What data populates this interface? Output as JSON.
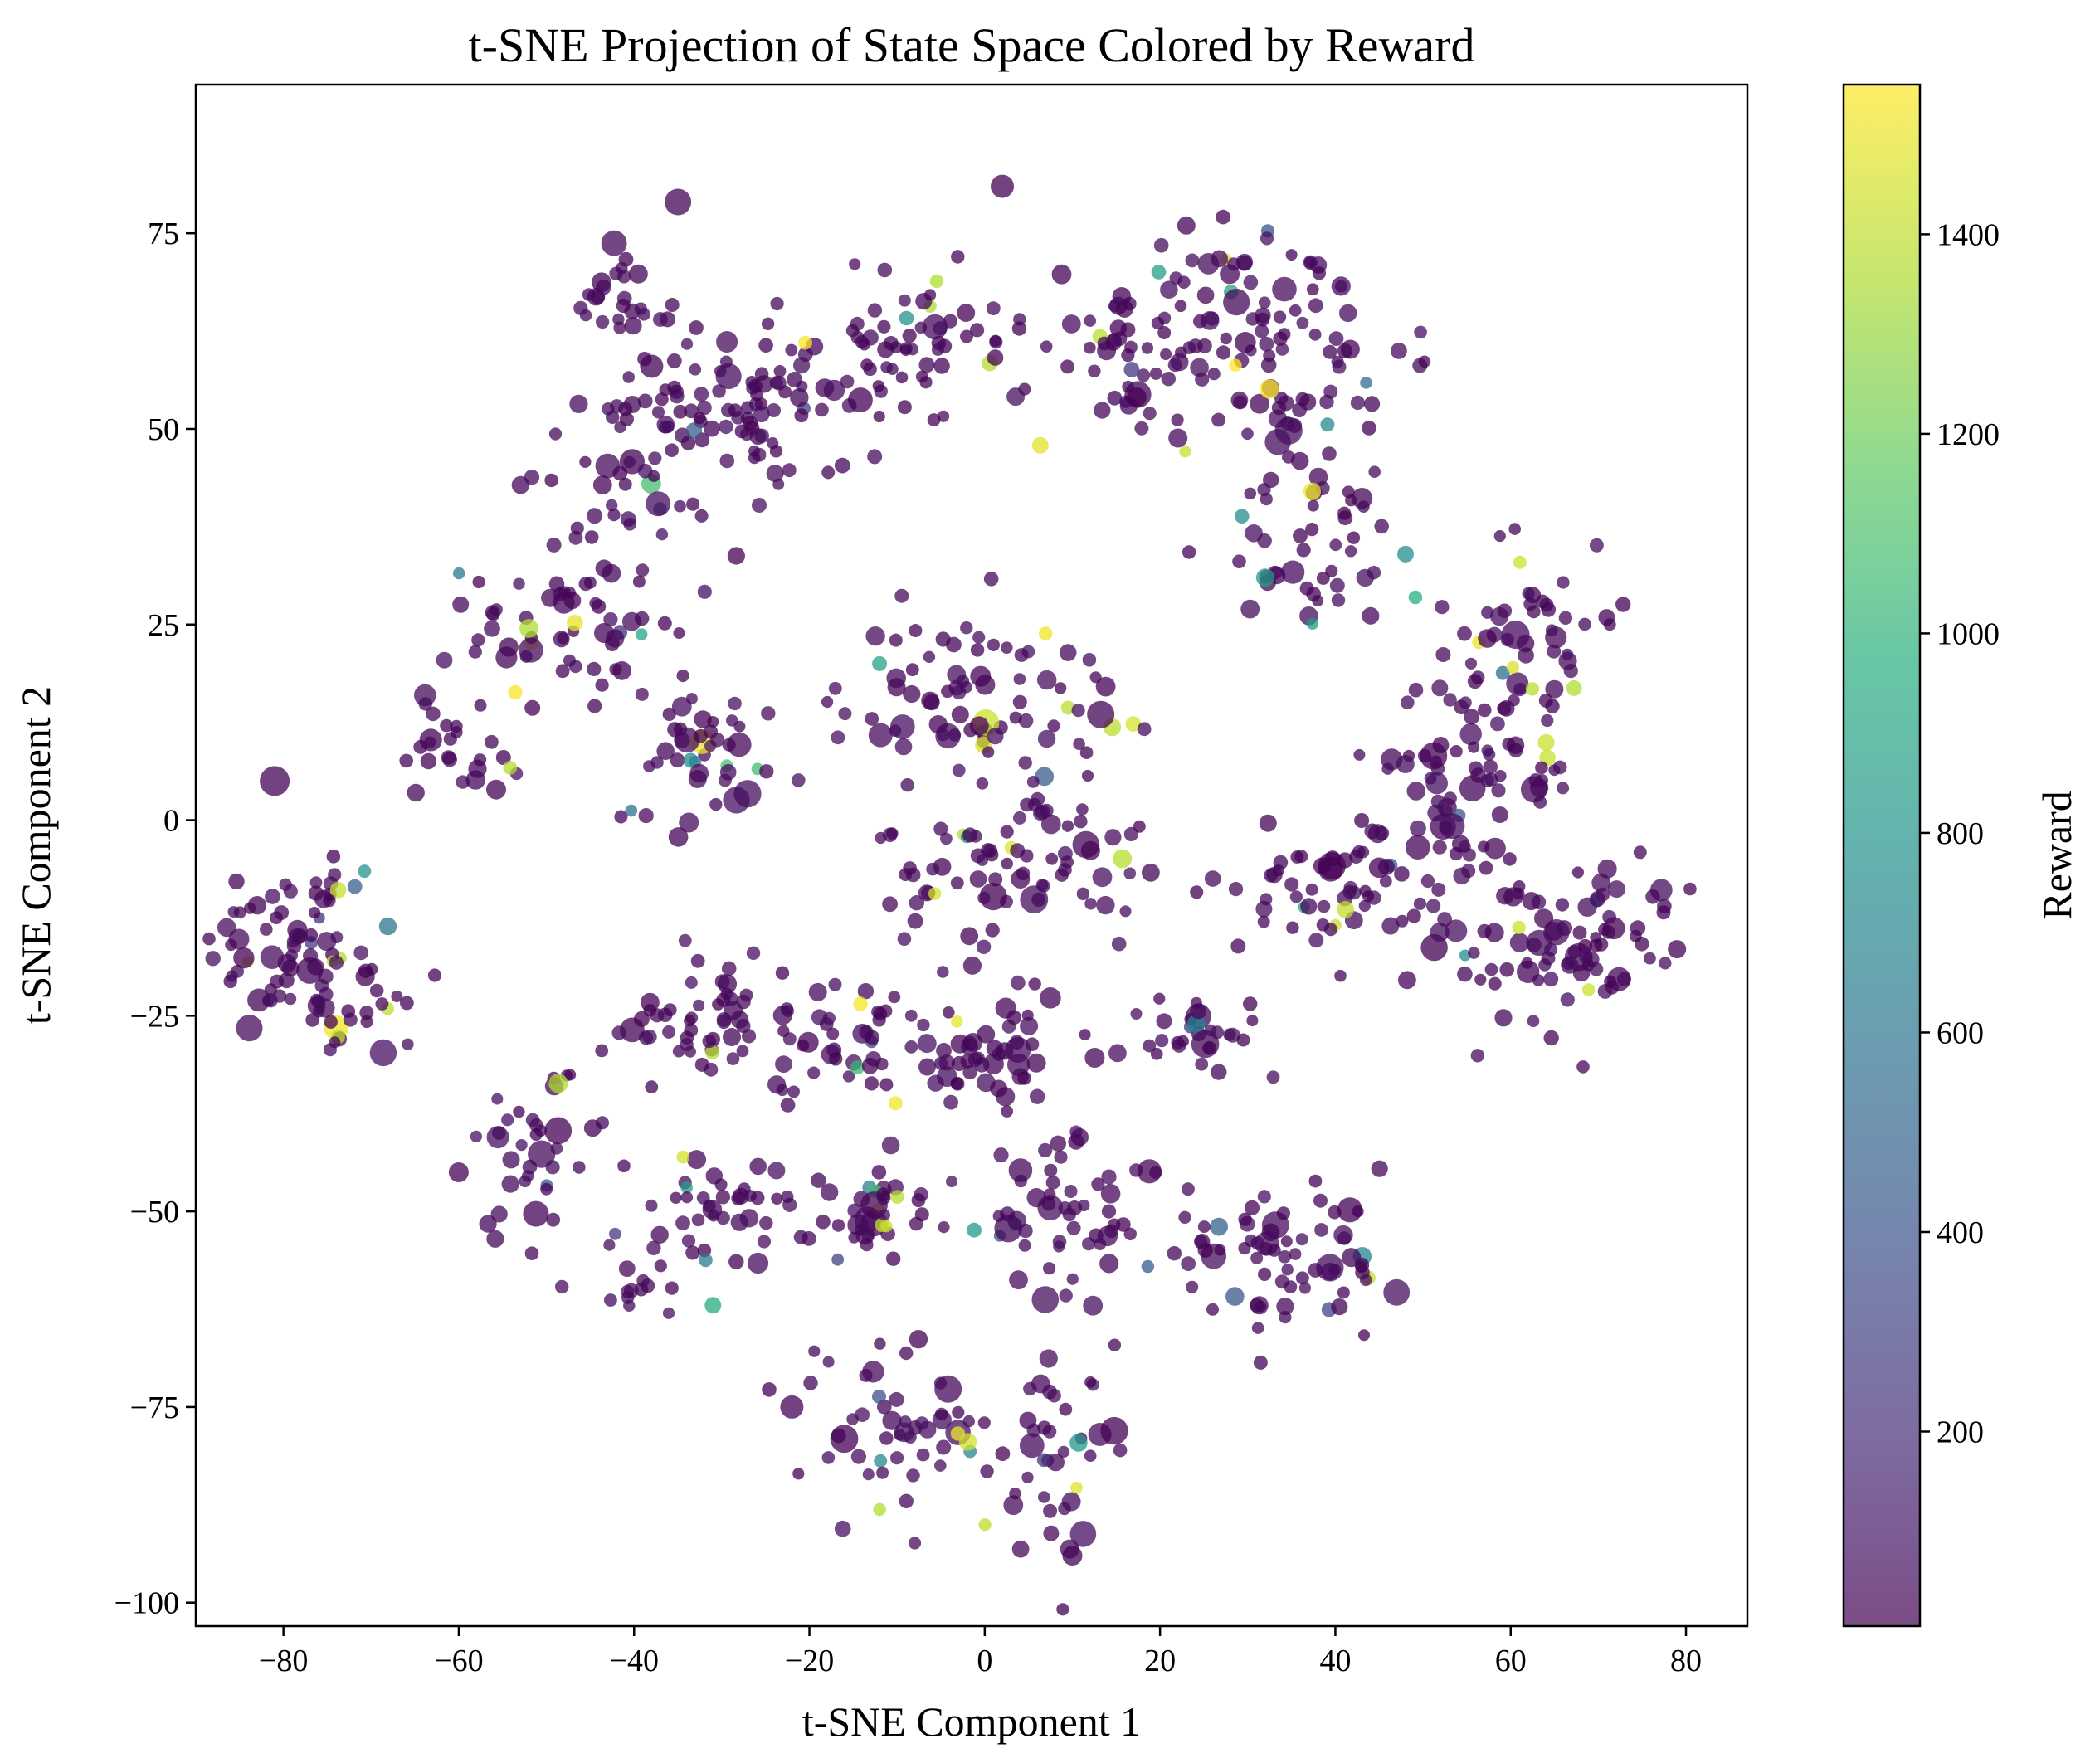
{
  "chart_data": {
    "type": "scatter",
    "title": "t-SNE Projection of State Space Colored by Reward",
    "xlabel": "t-SNE Component 1",
    "ylabel": "t-SNE Component 2",
    "xlim": [
      -90,
      87
    ],
    "ylim": [
      -103,
      94
    ],
    "xticks": [
      -80,
      -60,
      -40,
      -20,
      0,
      20,
      40,
      60,
      80
    ],
    "xtick_labels": [
      "−80",
      "−60",
      "−40",
      "−20",
      "0",
      "20",
      "40",
      "60",
      "80"
    ],
    "yticks": [
      -100,
      -75,
      -50,
      -25,
      0,
      25,
      50,
      75
    ],
    "ytick_labels": [
      "−100",
      "−75",
      "−50",
      "−25",
      "0",
      "25",
      "50",
      "75"
    ],
    "grid": false,
    "colorbar": {
      "label": "Reward",
      "colormap": "viridis",
      "alpha": 0.7,
      "range": [
        5,
        1550
      ],
      "ticks": [
        200,
        400,
        600,
        800,
        1000,
        1200,
        1400
      ],
      "tick_labels": [
        "200",
        "400",
        "600",
        "800",
        "1000",
        "1200",
        "1400"
      ]
    },
    "clusters": [
      {
        "cx": -78,
        "cy": -15,
        "rx": 10,
        "ry": 12,
        "n": 70
      },
      {
        "cx": -72,
        "cy": -24,
        "rx": 8,
        "ry": 6,
        "n": 25
      },
      {
        "cx": -48,
        "cy": 25,
        "rx": 10,
        "ry": 10,
        "n": 60
      },
      {
        "cx": -60,
        "cy": 10,
        "rx": 8,
        "ry": 6,
        "n": 25
      },
      {
        "cx": -38,
        "cy": 45,
        "rx": 12,
        "ry": 10,
        "n": 55
      },
      {
        "cx": -42,
        "cy": 65,
        "rx": 6,
        "ry": 8,
        "n": 25
      },
      {
        "cx": -25,
        "cy": 55,
        "rx": 12,
        "ry": 10,
        "n": 70
      },
      {
        "cx": -8,
        "cy": 60,
        "rx": 12,
        "ry": 10,
        "n": 60
      },
      {
        "cx": 15,
        "cy": 60,
        "rx": 10,
        "ry": 10,
        "n": 50
      },
      {
        "cx": 35,
        "cy": 60,
        "rx": 12,
        "ry": 15,
        "n": 75
      },
      {
        "cx": 38,
        "cy": 35,
        "rx": 10,
        "ry": 10,
        "n": 45
      },
      {
        "cx": 30,
        "cy": 70,
        "rx": 8,
        "ry": 8,
        "n": 25
      },
      {
        "cx": 62,
        "cy": 22,
        "rx": 10,
        "ry": 12,
        "n": 60
      },
      {
        "cx": 55,
        "cy": 5,
        "rx": 10,
        "ry": 10,
        "n": 60
      },
      {
        "cx": 42,
        "cy": -8,
        "rx": 12,
        "ry": 10,
        "n": 70
      },
      {
        "cx": 65,
        "cy": -18,
        "rx": 10,
        "ry": 10,
        "n": 55
      },
      {
        "cx": 72,
        "cy": -12,
        "rx": 8,
        "ry": 6,
        "n": 25
      },
      {
        "cx": 0,
        "cy": 15,
        "rx": 15,
        "ry": 10,
        "n": 80
      },
      {
        "cx": 5,
        "cy": -5,
        "rx": 15,
        "ry": 10,
        "n": 80
      },
      {
        "cx": -32,
        "cy": 8,
        "rx": 10,
        "ry": 8,
        "n": 45
      },
      {
        "cx": -30,
        "cy": -25,
        "rx": 12,
        "ry": 8,
        "n": 60
      },
      {
        "cx": -15,
        "cy": -28,
        "rx": 8,
        "ry": 8,
        "n": 35
      },
      {
        "cx": 0,
        "cy": -30,
        "rx": 10,
        "ry": 6,
        "n": 50
      },
      {
        "cx": 25,
        "cy": -28,
        "rx": 8,
        "ry": 5,
        "n": 30
      },
      {
        "cx": -52,
        "cy": -42,
        "rx": 8,
        "ry": 10,
        "n": 35
      },
      {
        "cx": -30,
        "cy": -50,
        "rx": 10,
        "ry": 6,
        "n": 45
      },
      {
        "cx": -12,
        "cy": -50,
        "rx": 8,
        "ry": 6,
        "n": 35
      },
      {
        "cx": 10,
        "cy": -50,
        "rx": 10,
        "ry": 10,
        "n": 55
      },
      {
        "cx": 33,
        "cy": -57,
        "rx": 12,
        "ry": 8,
        "n": 70
      },
      {
        "cx": -10,
        "cy": -78,
        "rx": 10,
        "ry": 10,
        "n": 50
      },
      {
        "cx": 8,
        "cy": -82,
        "rx": 8,
        "ry": 10,
        "n": 40
      },
      {
        "cx": -40,
        "cy": -60,
        "rx": 6,
        "ry": 5,
        "n": 15
      }
    ],
    "highlights": [
      {
        "x": -35,
        "y": 79,
        "r": 16
      },
      {
        "x": -81,
        "y": 5,
        "r": 18
      },
      {
        "x": 2,
        "y": 81,
        "r": 14
      },
      {
        "x": 23,
        "y": 76,
        "r": 11
      },
      {
        "x": -38,
        "y": 58,
        "r": 14
      },
      {
        "x": 32,
        "y": 31,
        "r": 11,
        "reward": 850
      },
      {
        "x": 48,
        "y": 34,
        "r": 10,
        "reward": 750
      },
      {
        "x": -12,
        "y": 20,
        "r": 9,
        "reward": 900
      },
      {
        "x": -31,
        "y": -62,
        "r": 10,
        "reward": 950
      },
      {
        "x": 10,
        "y": -94,
        "r": 12
      },
      {
        "x": -60,
        "y": -45,
        "r": 12
      },
      {
        "x": -22,
        "y": -75,
        "r": 14
      }
    ]
  }
}
